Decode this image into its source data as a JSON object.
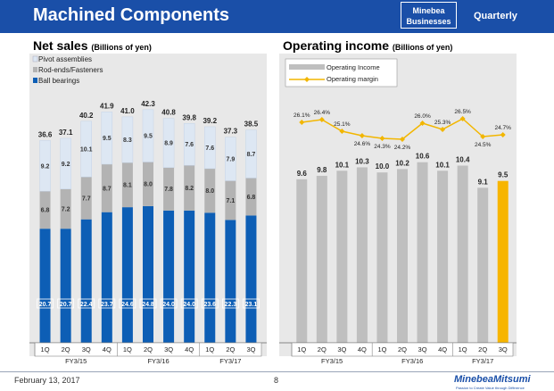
{
  "header": {
    "title": "Machined Components",
    "badge_line1": "Minebea",
    "badge_line2": "Businesses",
    "period": "Quarterly"
  },
  "footer": {
    "date": "February 13, 2017",
    "page": "8",
    "logo": "MinebeaMitsumi",
    "tagline": "Passion to Create Value through Difference"
  },
  "colors": {
    "banner": "#1a4fa8",
    "ball_bearings": "#0d5eb5",
    "rod_ends": "#b3b3b3",
    "pivot": "#dde7f3",
    "op_income": "#bfbfbf",
    "op_income_highlight": "#f7b500",
    "margin_line": "#f2b600"
  },
  "chart_data": [
    {
      "type": "bar",
      "stacked": true,
      "title": "Net sales",
      "unit": "(Billions of yen)",
      "categories": [
        "1Q",
        "2Q",
        "3Q",
        "4Q",
        "1Q",
        "2Q",
        "3Q",
        "4Q",
        "1Q",
        "2Q",
        "3Q"
      ],
      "groups": [
        {
          "label": "FY3/15",
          "count": 4
        },
        {
          "label": "FY3/16",
          "count": 4
        },
        {
          "label": "FY3/17",
          "count": 3
        }
      ],
      "series": [
        {
          "name": "Ball bearings",
          "values": [
            20.7,
            20.7,
            22.4,
            23.7,
            24.6,
            24.8,
            24.0,
            24.0,
            23.6,
            22.3,
            23.1
          ]
        },
        {
          "name": "Rod-ends/Fasteners",
          "values": [
            6.8,
            7.2,
            7.7,
            8.7,
            8.1,
            8.0,
            7.8,
            8.2,
            8.0,
            7.1,
            6.8
          ]
        },
        {
          "name": "Pivot assemblies",
          "values": [
            9.2,
            9.2,
            10.1,
            9.5,
            8.3,
            9.5,
            8.9,
            7.6,
            7.6,
            7.9,
            8.7
          ]
        }
      ],
      "totals": [
        36.6,
        37.1,
        40.2,
        41.9,
        41.0,
        42.3,
        40.8,
        39.8,
        39.2,
        37.3,
        38.5
      ],
      "legend": [
        "Pivot assemblies",
        "Rod-ends/Fasteners",
        "Ball bearings"
      ],
      "ylim": [
        0,
        46
      ]
    },
    {
      "type": "bar+line",
      "title": "Operating income",
      "unit": "(Billions of yen)",
      "categories": [
        "1Q",
        "2Q",
        "3Q",
        "4Q",
        "1Q",
        "2Q",
        "3Q",
        "4Q",
        "1Q",
        "2Q",
        "3Q"
      ],
      "groups": [
        {
          "label": "FY3/15",
          "count": 4
        },
        {
          "label": "FY3/16",
          "count": 4
        },
        {
          "label": "FY3/17",
          "count": 3
        }
      ],
      "legend": [
        "Operating Income",
        "Operating margin"
      ],
      "bars": {
        "name": "Operating Income",
        "values": [
          9.6,
          9.8,
          10.1,
          10.3,
          10.0,
          10.2,
          10.6,
          10.1,
          10.4,
          9.1,
          9.5
        ],
        "highlight_index": 10
      },
      "line": {
        "name": "Operating margin",
        "values": [
          26.1,
          26.4,
          25.1,
          24.6,
          24.3,
          24.2,
          26.0,
          25.3,
          26.5,
          24.5,
          24.7
        ],
        "labels": [
          "26.1%",
          "26.4%",
          "25.1%",
          "24.6%",
          "24.3%",
          "24.2%",
          "26.0%",
          "25.3%",
          "26.5%",
          "24.5%",
          "24.7%"
        ]
      },
      "ylim_bars": [
        0,
        12
      ],
      "ylim_line": [
        23,
        28
      ]
    }
  ]
}
